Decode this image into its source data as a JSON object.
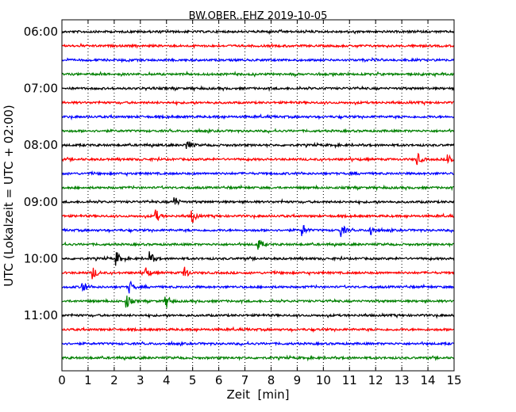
{
  "chart_data": {
    "type": "line",
    "title": "BW.OBER..EHZ 2019-10-05",
    "xlabel": "Zeit  [min]",
    "ylabel": "UTC (Lokalzeit = UTC + 02:00)",
    "xlim": [
      0,
      15
    ],
    "x_ticks": [
      "0",
      "1",
      "2",
      "3",
      "4",
      "5",
      "6",
      "7",
      "8",
      "9",
      "10",
      "11",
      "12",
      "13",
      "14",
      "15"
    ],
    "y_tick_labels": [
      {
        "row": 0,
        "label": "06:00"
      },
      {
        "row": 4,
        "label": "07:00"
      },
      {
        "row": 8,
        "label": "08:00"
      },
      {
        "row": 12,
        "label": "09:00"
      },
      {
        "row": 16,
        "label": "10:00"
      },
      {
        "row": 20,
        "label": "11:00"
      }
    ],
    "grid": {
      "vertical_dotted": true
    },
    "series_colors": [
      "#000000",
      "#ff0000",
      "#0000ff",
      "#008000"
    ],
    "rows": [
      {
        "start": "06:00",
        "color": "#000000",
        "events": []
      },
      {
        "start": "06:15",
        "color": "#ff0000",
        "events": []
      },
      {
        "start": "06:30",
        "color": "#0000ff",
        "events": []
      },
      {
        "start": "06:45",
        "color": "#008000",
        "events": []
      },
      {
        "start": "07:00",
        "color": "#000000",
        "events": []
      },
      {
        "start": "07:15",
        "color": "#ff0000",
        "events": []
      },
      {
        "start": "07:30",
        "color": "#0000ff",
        "events": []
      },
      {
        "start": "07:45",
        "color": "#008000",
        "events": []
      },
      {
        "start": "08:00",
        "color": "#000000",
        "events": [
          4.8
        ]
      },
      {
        "start": "08:15",
        "color": "#ff0000",
        "events": [
          13.6,
          14.8
        ]
      },
      {
        "start": "08:30",
        "color": "#0000ff",
        "events": []
      },
      {
        "start": "08:45",
        "color": "#008000",
        "events": []
      },
      {
        "start": "09:00",
        "color": "#000000",
        "events": [
          4.3
        ]
      },
      {
        "start": "09:15",
        "color": "#ff0000",
        "events": [
          3.6,
          5.0
        ]
      },
      {
        "start": "09:30",
        "color": "#0000ff",
        "events": [
          9.2,
          10.7,
          11.8
        ]
      },
      {
        "start": "09:45",
        "color": "#008000",
        "events": [
          7.5
        ]
      },
      {
        "start": "10:00",
        "color": "#000000",
        "events": [
          2.1,
          3.4
        ]
      },
      {
        "start": "10:15",
        "color": "#ff0000",
        "events": [
          1.2,
          3.2,
          4.7
        ]
      },
      {
        "start": "10:30",
        "color": "#0000ff",
        "events": [
          0.8,
          2.6
        ]
      },
      {
        "start": "10:45",
        "color": "#008000",
        "events": [
          2.5,
          4.0
        ]
      },
      {
        "start": "11:00",
        "color": "#000000",
        "events": []
      },
      {
        "start": "11:15",
        "color": "#ff0000",
        "events": []
      },
      {
        "start": "11:30",
        "color": "#0000ff",
        "events": []
      },
      {
        "start": "11:45",
        "color": "#008000",
        "events": []
      }
    ]
  }
}
